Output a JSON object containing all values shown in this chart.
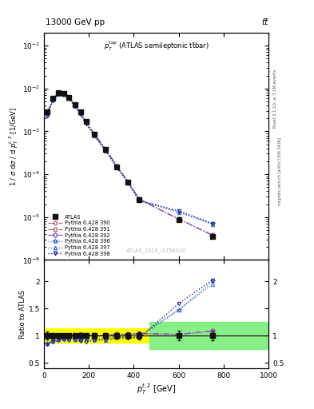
{
  "title_top": "13000 GeV pp",
  "title_right": "tt̅",
  "panel_label": "$p_T^{top}$ (ATLAS semileptonic t$\\bar{t}$bar)",
  "watermark": "ATLAS_2019_I1750330",
  "right_label_top": "Rivet 3.1.10, ≥ 3.1M events",
  "right_label_bot": "mcplots.cern.ch [arXiv:1306.3436]",
  "ylabel_main": "1 / $\\sigma$ d$\\sigma$ / d $p_T^{t,2}$ [1/GeV]",
  "ylabel_ratio": "Ratio to ATLAS",
  "xlabel": "$p_T^{t,2}$ [GeV]",
  "xlim": [
    0,
    1000
  ],
  "ylim_main": [
    1e-06,
    0.2
  ],
  "ylim_ratio": [
    0.4,
    2.4
  ],
  "atlas_x": [
    15,
    40,
    65,
    90,
    112,
    137,
    162,
    187,
    225,
    275,
    325,
    375,
    425,
    600,
    750
  ],
  "atlas_y": [
    0.0028,
    0.006,
    0.008,
    0.0077,
    0.0063,
    0.0042,
    0.0028,
    0.0017,
    0.00085,
    0.00038,
    0.00015,
    6.5e-05,
    2.5e-05,
    8.8e-06,
    3.5e-06
  ],
  "atlas_yerr": [
    0.00022,
    0.0003,
    0.0003,
    0.00025,
    0.0002,
    0.00016,
    0.00012,
    8e-05,
    4e-05,
    1.8e-05,
    8e-06,
    4e-06,
    1.5e-06,
    8e-07,
    3e-07
  ],
  "mc_x": [
    15,
    40,
    65,
    90,
    112,
    137,
    162,
    187,
    225,
    275,
    325,
    375,
    425,
    600,
    750
  ],
  "pythia390_y": [
    0.00275,
    0.0059,
    0.0079,
    0.0077,
    0.0063,
    0.0043,
    0.0028,
    0.0017,
    0.00086,
    0.00038,
    0.000155,
    6.6e-05,
    2.6e-05,
    9e-06,
    3.8e-06
  ],
  "pythia391_y": [
    0.00278,
    0.006,
    0.008,
    0.0078,
    0.0064,
    0.0043,
    0.0029,
    0.0017,
    0.00086,
    0.00038,
    0.000155,
    6.6e-05,
    2.6e-05,
    9e-06,
    3.8e-06
  ],
  "pythia392_y": [
    0.00272,
    0.0059,
    0.0079,
    0.0076,
    0.0062,
    0.0042,
    0.0028,
    0.0017,
    0.00085,
    0.00038,
    0.000155,
    6.6e-05,
    2.6e-05,
    9e-06,
    3.8e-06
  ],
  "pythia396_y": [
    0.0024,
    0.0055,
    0.0075,
    0.0074,
    0.006,
    0.004,
    0.0026,
    0.0016,
    0.0008,
    0.00036,
    0.000148,
    6.4e-05,
    2.5e-05,
    1.3e-05,
    7e-06
  ],
  "pythia397_y": [
    0.00238,
    0.0054,
    0.0074,
    0.0073,
    0.0059,
    0.0039,
    0.0026,
    0.0016,
    0.00079,
    0.00035,
    0.000145,
    6.3e-05,
    2.4e-05,
    1.3e-05,
    6.8e-06
  ],
  "pythia398_y": [
    0.00235,
    0.0053,
    0.0073,
    0.0072,
    0.0058,
    0.0039,
    0.0025,
    0.0015,
    0.00078,
    0.00035,
    0.000143,
    6.2e-05,
    2.4e-05,
    1.4e-05,
    7.1e-06
  ],
  "color390": "#c06880",
  "color391": "#c06880",
  "color392": "#8060c0",
  "color396": "#4070c0",
  "color397": "#4070c0",
  "color398": "#202090",
  "atlas_color": "#111111",
  "band_yellow_xlim": [
    0,
    470
  ],
  "band_yellow_ylo": 0.87,
  "band_yellow_yhi": 1.13,
  "band_green_xlim": [
    470,
    1000
  ],
  "band_green_ylo": 0.75,
  "band_green_yhi": 1.25,
  "band_yellow2_xlim": [
    0,
    470
  ],
  "band_yellow2_ylo": 0.92,
  "band_yellow2_yhi": 1.08
}
